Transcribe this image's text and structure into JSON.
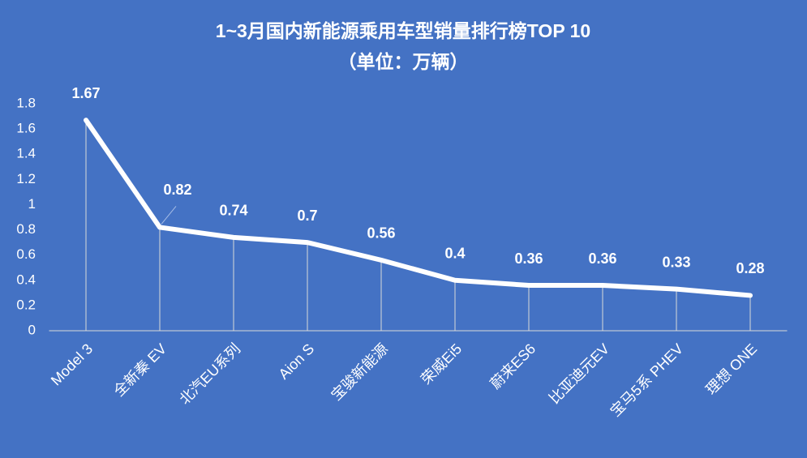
{
  "chart_data": {
    "type": "line",
    "title": "1~3月国内新能源乘用车型销量排行榜TOP 10",
    "subtitle": "（单位：万辆）",
    "categories": [
      "Model 3",
      "全新秦 EV",
      "北汽EU系列",
      "Aion S",
      "宝骏新能源",
      "荣威Ei5",
      "蔚来ES6",
      "比亚迪元EV",
      "宝马5系 PHEV",
      "理想 ONE"
    ],
    "values": [
      1.67,
      0.82,
      0.74,
      0.7,
      0.56,
      0.4,
      0.36,
      0.36,
      0.33,
      0.28
    ],
    "color": "#ffffff",
    "ylim": [
      0,
      1.8
    ],
    "yticks": [
      0,
      0.2,
      0.4,
      0.6,
      0.8,
      1,
      1.2,
      1.4,
      1.6,
      1.8
    ],
    "grid": false,
    "drop_lines": true
  }
}
